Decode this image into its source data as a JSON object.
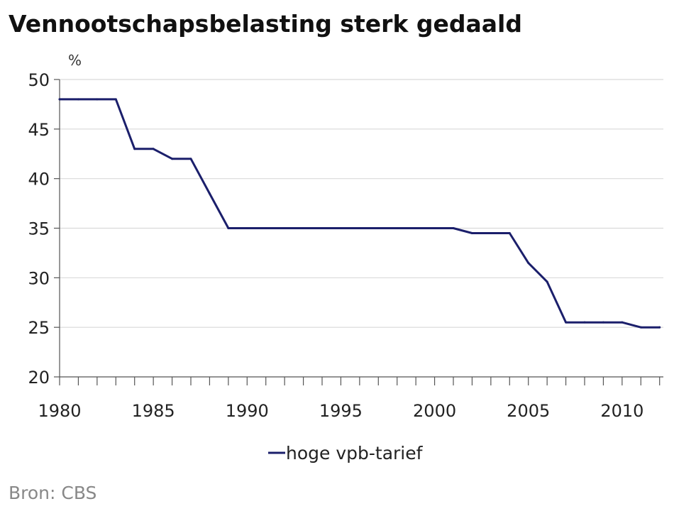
{
  "chart_data": {
    "type": "line",
    "title": "Vennootschapsbelasting sterk gedaald",
    "unit_label": "%",
    "source": "Bron: CBS",
    "xlim": [
      1980,
      2012.2
    ],
    "ylim": [
      20,
      50
    ],
    "x_ticks": [
      1980,
      1985,
      1990,
      1995,
      2000,
      2005,
      2010
    ],
    "y_ticks": [
      20,
      25,
      30,
      35,
      40,
      45,
      50
    ],
    "grid": "horizontal",
    "legend_position": "bottom-center",
    "colors": {
      "series": "#1b1f6b",
      "grid": "#d9d9d9",
      "axis": "#555555"
    },
    "series": [
      {
        "name": "hoge vpb-tarief",
        "x": [
          1980,
          1981,
          1982,
          1983,
          1984,
          1985,
          1986,
          1987,
          1988,
          1989,
          1990,
          1991,
          1992,
          1993,
          1994,
          1995,
          1996,
          1997,
          1998,
          1999,
          2000,
          2001,
          2002,
          2003,
          2004,
          2005,
          2006,
          2007,
          2008,
          2009,
          2010,
          2011,
          2012
        ],
        "values": [
          48,
          48,
          48,
          48,
          43,
          43,
          42,
          42,
          38.5,
          35,
          35,
          35,
          35,
          35,
          35,
          35,
          35,
          35,
          35,
          35,
          35,
          35,
          34.5,
          34.5,
          34.5,
          31.5,
          29.6,
          25.5,
          25.5,
          25.5,
          25.5,
          25,
          25
        ]
      }
    ]
  }
}
